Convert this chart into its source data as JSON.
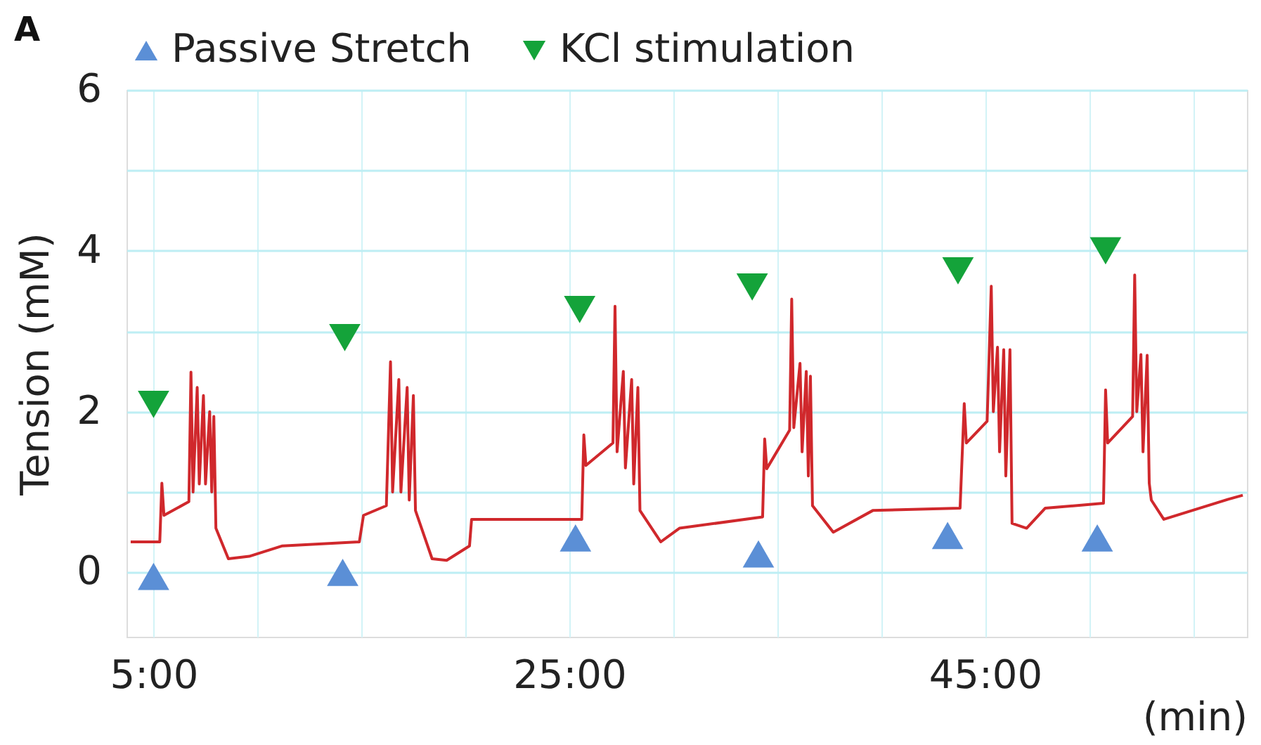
{
  "chart_data": {
    "type": "line",
    "ylabel": "Tension (mM)",
    "xlabel": "(min)",
    "annotations": [
      "A"
    ],
    "xlim": [
      3.7,
      57.6
    ],
    "ylim": [
      -0.8,
      6
    ],
    "xticks": [
      {
        "value": 5,
        "label": "5:00"
      },
      {
        "value": 10,
        "label": null
      },
      {
        "value": 15,
        "label": null
      },
      {
        "value": 20,
        "label": null
      },
      {
        "value": 25,
        "label": "25:00"
      },
      {
        "value": 30,
        "label": null
      },
      {
        "value": 35,
        "label": null
      },
      {
        "value": 40,
        "label": null
      },
      {
        "value": 45,
        "label": "45:00"
      },
      {
        "value": 50,
        "label": null
      },
      {
        "value": 55,
        "label": null
      }
    ],
    "yticks": [
      0,
      {
        "value": 1,
        "label": null
      },
      2,
      {
        "value": 3,
        "label": null
      },
      4,
      {
        "value": 5,
        "label": null
      },
      6
    ],
    "grid": true,
    "legend": "top",
    "series": [
      {
        "color": "#d0282c",
        "x": [
          3.9,
          5.3,
          5.4,
          5.5,
          6.7,
          6.8,
          6.9,
          7.1,
          7.2,
          7.4,
          7.5,
          7.7,
          7.8,
          7.9,
          8.0,
          8.6,
          9.6,
          11.2,
          14.9,
          15.1,
          16.2,
          16.4,
          16.5,
          16.8,
          16.9,
          17.2,
          17.3,
          17.5,
          17.6,
          18.4,
          19.1,
          20.2,
          20.3,
          25.6,
          25.7,
          25.8,
          27.1,
          27.2,
          27.3,
          27.6,
          27.7,
          28.0,
          28.1,
          28.3,
          28.4,
          29.4,
          30.3,
          34.3,
          34.4,
          34.5,
          35.6,
          35.7,
          35.8,
          36.1,
          36.2,
          36.4,
          36.5,
          36.6,
          36.7,
          37.7,
          39.6,
          43.8,
          44.0,
          44.1,
          45.1,
          45.3,
          45.4,
          45.6,
          45.7,
          45.9,
          46.0,
          46.2,
          46.3,
          47.0,
          47.9,
          50.7,
          50.8,
          50.9,
          52.1,
          52.2,
          52.3,
          52.5,
          52.6,
          52.8,
          52.9,
          53.0,
          53.6,
          56.7,
          57.4
        ],
        "values": [
          0.38,
          0.38,
          1.11,
          0.71,
          0.88,
          2.49,
          1.0,
          2.3,
          1.1,
          2.2,
          1.1,
          2.0,
          1.0,
          1.94,
          0.55,
          0.17,
          0.2,
          0.33,
          0.38,
          0.71,
          0.83,
          2.62,
          1.0,
          2.4,
          1.0,
          2.3,
          0.9,
          2.2,
          0.77,
          0.17,
          0.15,
          0.33,
          0.66,
          0.66,
          1.71,
          1.33,
          1.61,
          3.31,
          1.5,
          2.5,
          1.3,
          2.4,
          1.1,
          2.3,
          0.77,
          0.38,
          0.55,
          0.69,
          1.66,
          1.29,
          1.77,
          3.4,
          1.8,
          2.6,
          1.5,
          2.5,
          1.2,
          2.44,
          0.83,
          0.5,
          0.77,
          0.8,
          2.1,
          1.61,
          1.88,
          3.56,
          2.0,
          2.8,
          1.5,
          2.77,
          1.2,
          2.77,
          0.61,
          0.55,
          0.8,
          0.86,
          2.27,
          1.61,
          1.94,
          3.7,
          2.0,
          2.71,
          1.5,
          2.7,
          1.11,
          0.9,
          0.66,
          0.91,
          0.96
        ]
      },
      {
        "type": "scatter",
        "name": "Passive Stretch",
        "color": "#5b8fd6",
        "marker": "triangle",
        "x": [
          5.0,
          14.1,
          25.3,
          34.1,
          43.2,
          50.4
        ],
        "values": [
          -0.05,
          0.0,
          0.43,
          0.23,
          0.46,
          0.43
        ]
      },
      {
        "type": "scatter",
        "name": "KCl stimulation",
        "color": "#14a33a",
        "marker": "triangle",
        "x": [
          5.0,
          14.2,
          25.5,
          33.8,
          43.7,
          50.8
        ],
        "values": [
          2.09,
          2.92,
          3.27,
          3.55,
          3.75,
          4.0
        ]
      }
    ]
  }
}
